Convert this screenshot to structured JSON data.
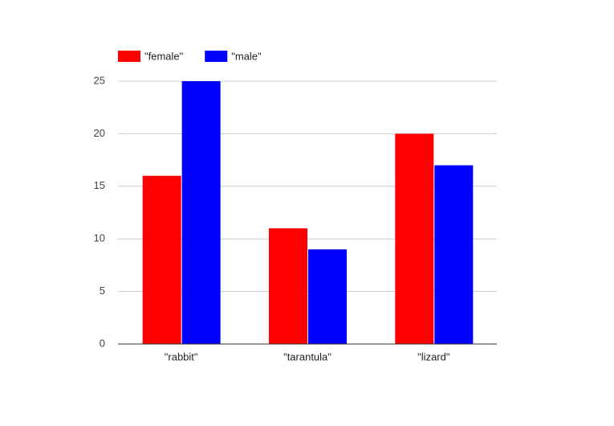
{
  "chart_data": {
    "type": "bar",
    "categories": [
      "\"rabbit\"",
      "\"tarantula\"",
      "\"lizard\""
    ],
    "series": [
      {
        "name": "\"female\"",
        "color": "#ff0000",
        "values": [
          16,
          11,
          20
        ]
      },
      {
        "name": "\"male\"",
        "color": "#0000ff",
        "values": [
          25,
          9,
          17
        ]
      }
    ],
    "ylim": [
      0,
      25
    ],
    "yticks": [
      0,
      5,
      10,
      15,
      20,
      25
    ],
    "grid": true,
    "legend": "top-left"
  }
}
